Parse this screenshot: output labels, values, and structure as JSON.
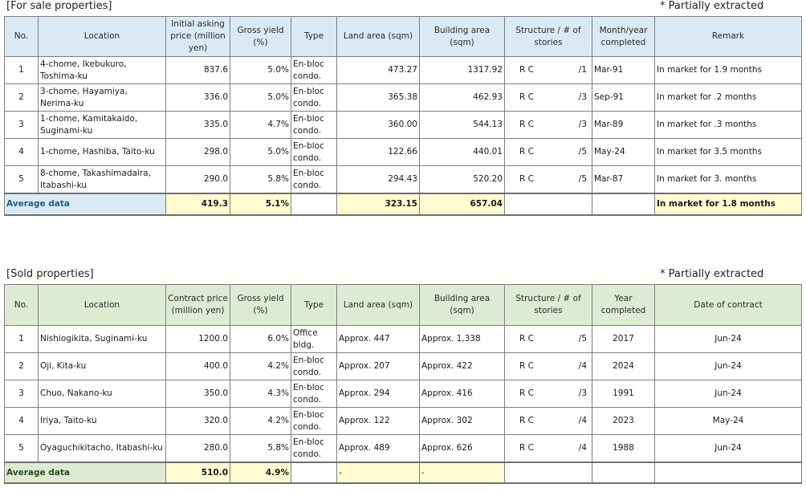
{
  "for_sale": {
    "title": "[For sale properties]",
    "note": "* Partially extracted",
    "headers": {
      "no": "No.",
      "location": "Location",
      "price": "Initial asking price (million yen)",
      "yield": "Gross yield (%)",
      "type": "Type",
      "land": "Land area (sqm)",
      "building": "Building area (sqm)",
      "structure": "Structure / # of stories",
      "completed": "Month/year completed",
      "remark": "Remark"
    },
    "rows": [
      {
        "no": "1",
        "location": "4-chome, Ikebukuro, Toshima-ku",
        "price": "837.6",
        "yield": "5.0%",
        "type": "En-bloc condo.",
        "land": "473.27",
        "building": "1317.92",
        "structure": "R C",
        "stories": "/1",
        "completed": "Mar-91",
        "remark": "In market for 1.9 months"
      },
      {
        "no": "2",
        "location": "3-chome, Hayamiya, Nerima-ku",
        "price": "336.0",
        "yield": "5.0%",
        "type": "En-bloc condo.",
        "land": "365.38",
        "building": "462.93",
        "structure": "R C",
        "stories": "/3",
        "completed": "Sep-91",
        "remark": "In market for .2 months"
      },
      {
        "no": "3",
        "location": "1-chome, Kamitakaido, Suginami-ku",
        "price": "335.0",
        "yield": "4.7%",
        "type": "En-bloc condo.",
        "land": "360.00",
        "building": "544.13",
        "structure": "R C",
        "stories": "/3",
        "completed": "Mar-89",
        "remark": "In market for .3 months"
      },
      {
        "no": "4",
        "location": "1-chome, Hashiba, Taito-ku",
        "price": "298.0",
        "yield": "5.0%",
        "type": "En-bloc condo.",
        "land": "122.66",
        "building": "440.01",
        "structure": "R C",
        "stories": "/5",
        "completed": "May-24",
        "remark": "In market for 3.5 months"
      },
      {
        "no": "5",
        "location": "8-chome, Takashimadaira, Itabashi-ku",
        "price": "290.0",
        "yield": "5.8%",
        "type": "En-bloc condo.",
        "land": "294.43",
        "building": "520.20",
        "structure": "R C",
        "stories": "/5",
        "completed": "Mar-87",
        "remark": "In market for 3. months"
      }
    ],
    "average": {
      "label": "Average data",
      "price": "419.3",
      "yield": "5.1%",
      "land": "323.15",
      "building": "657.04",
      "remark": "In market for 1.8 months"
    }
  },
  "sold": {
    "title": "[Sold properties]",
    "note": "* Partially extracted",
    "headers": {
      "no": "No.",
      "location": "Location",
      "price": "Contract price (million yen)",
      "yield": "Gross yield (%)",
      "type": "Type",
      "land": "Land area (sqm)",
      "building": "Building area (sqm)",
      "structure": "Structure / # of stories",
      "completed": "Year completed",
      "contract_date": "Date of contract"
    },
    "rows": [
      {
        "no": "1",
        "location": "Nishiogikita, Suginami-ku",
        "price": "1200.0",
        "yield": "6.0%",
        "type": "Office bldg.",
        "land": "Approx. 447",
        "building": "Approx. 1,338",
        "structure": "R C",
        "stories": "/5",
        "completed": "2017",
        "contract_date": "Jun-24"
      },
      {
        "no": "2",
        "location": "Oji, Kita-ku",
        "price": "400.0",
        "yield": "4.2%",
        "type": "En-bloc condo.",
        "land": "Approx. 207",
        "building": "Approx. 422",
        "structure": "R C",
        "stories": "/4",
        "completed": "2024",
        "contract_date": "Jun-24"
      },
      {
        "no": "3",
        "location": "Chuo, Nakano-ku",
        "price": "350.0",
        "yield": "4.3%",
        "type": "En-bloc condo.",
        "land": "Approx. 294",
        "building": "Approx. 416",
        "structure": "R C",
        "stories": "/3",
        "completed": "1991",
        "contract_date": "Jun-24"
      },
      {
        "no": "4",
        "location": "Iriya, Taito-ku",
        "price": "320.0",
        "yield": "4.2%",
        "type": "En-bloc condo.",
        "land": "Approx. 122",
        "building": "Approx. 302",
        "structure": "R C",
        "stories": "/4",
        "completed": "2023",
        "contract_date": "May-24"
      },
      {
        "no": "5",
        "location": "Oyaguchikitacho, Itabashi-ku",
        "price": "280.0",
        "yield": "5.8%",
        "type": "En-bloc condo.",
        "land": "Approx. 489",
        "building": "Approx. 626",
        "structure": "R C",
        "stories": "/4",
        "completed": "1988",
        "contract_date": "Jun-24"
      }
    ],
    "average": {
      "label": "Average data",
      "price": "510.0",
      "yield": "4.9%",
      "land": "-",
      "building": "-"
    }
  }
}
